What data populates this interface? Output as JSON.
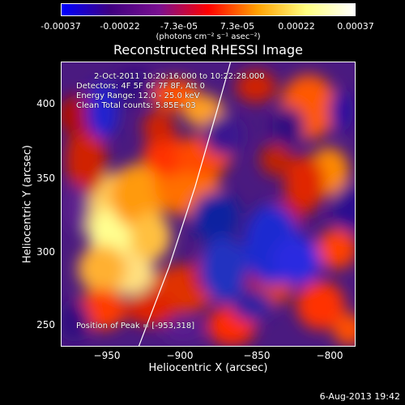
{
  "colorbar": {
    "ticks": [
      "-0.00037",
      "-0.00022",
      "-7.3e-05",
      "7.3e-05",
      "0.00022",
      "0.00037"
    ],
    "units": "(photons cm⁻² s⁻¹ asec⁻²)",
    "colors": [
      "#0000ff",
      "#400080",
      "#7a1090",
      "#ff0000",
      "#ffa000",
      "#ffff80",
      "#ffffff"
    ]
  },
  "chart_data": {
    "type": "heatmap",
    "title": "Reconstructed RHESSI Image",
    "xlabel": "Heliocentric X (arcsec)",
    "ylabel": "Heliocentric Y (arcsec)",
    "xlim": [
      -980,
      -788
    ],
    "ylim": [
      235,
      430
    ],
    "xticks": [
      "−950",
      "−900",
      "−850",
      "−800"
    ],
    "yticks": [
      "250",
      "300",
      "350",
      "400"
    ],
    "annotations": {
      "time": "2-Oct-2011 10:20:16.000 to 10:22:28.000",
      "detectors": "Detectors: 4F 5F 6F 7F 8F, Att 0",
      "energy": "Energy Range: 12.0 - 25.0 keV",
      "clean": "Clean     Total counts: 5.85E+03",
      "peak": "Position of Peak = [-953,318]"
    },
    "limb_points": [
      [
        -930,
        235
      ],
      [
        -910,
        290
      ],
      [
        -893,
        345
      ],
      [
        -878,
        400
      ],
      [
        -870,
        430
      ]
    ]
  },
  "footer": {
    "date": "6-Aug-2013 19:42"
  }
}
